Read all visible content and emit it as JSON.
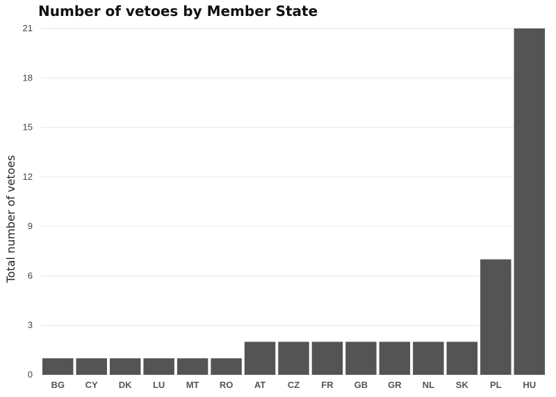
{
  "chart_data": {
    "type": "bar",
    "title": "Number of vetoes by Member State",
    "xlabel": "",
    "ylabel": "Total number of vetoes",
    "categories": [
      "BG",
      "CY",
      "DK",
      "LU",
      "MT",
      "RO",
      "AT",
      "CZ",
      "FR",
      "GB",
      "GR",
      "NL",
      "SK",
      "PL",
      "HU"
    ],
    "values": [
      1,
      1,
      1,
      1,
      1,
      1,
      2,
      2,
      2,
      2,
      2,
      2,
      2,
      7,
      21
    ],
    "ylim": [
      0,
      21
    ],
    "yticks": [
      0,
      3,
      6,
      9,
      12,
      15,
      18,
      21
    ],
    "grid": true,
    "bar_color": "#545454",
    "grid_color": "#e6e6e6"
  }
}
